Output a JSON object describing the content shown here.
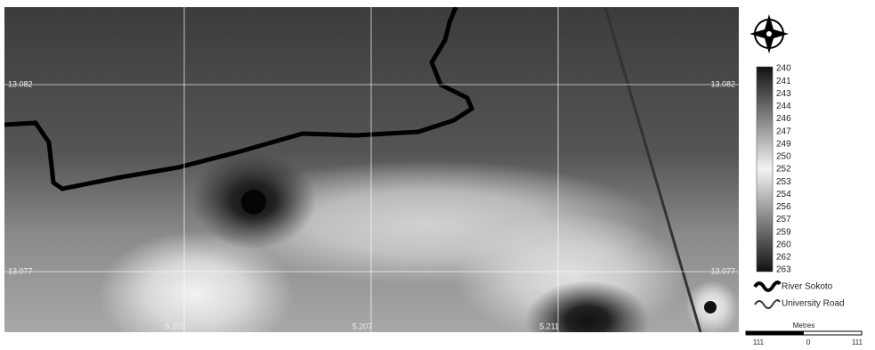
{
  "map": {
    "grid": {
      "latitudes": [
        "13.082",
        "13.077"
      ],
      "longitudes": [
        "5.203",
        "5.207",
        "5.211"
      ]
    },
    "ramp": {
      "labels": [
        240,
        241,
        243,
        244,
        246,
        247,
        249,
        250,
        252,
        253,
        254,
        256,
        257,
        259,
        260,
        262,
        263
      ]
    },
    "legend": {
      "items": [
        "River Sokoto",
        "University Road"
      ]
    },
    "scale_bar": {
      "title": "Metres",
      "labels": [
        "111",
        "0",
        "111"
      ]
    }
  }
}
